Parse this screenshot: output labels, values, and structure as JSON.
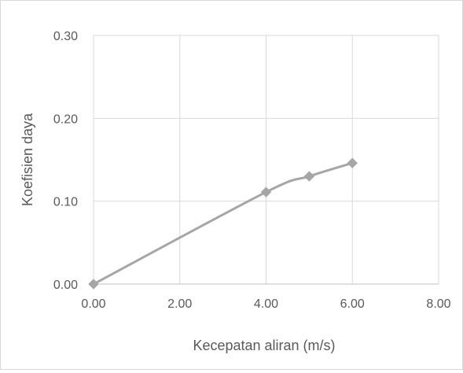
{
  "chart_data": {
    "type": "scatter",
    "title": "",
    "xlabel": "Kecepatan aliran (m/s)",
    "ylabel": "Koefisien daya",
    "xlim": [
      0,
      8
    ],
    "ylim": [
      0,
      0.3
    ],
    "x_ticks": [
      "0.00",
      "2.00",
      "4.00",
      "6.00",
      "8.00"
    ],
    "y_ticks": [
      "0.00",
      "0.10",
      "0.20",
      "0.30"
    ],
    "grid": true,
    "legend": "none",
    "series": [
      {
        "x": [
          0,
          4,
          5,
          6
        ],
        "y": [
          0,
          0.111,
          0.13,
          0.146
        ],
        "marker": "diamond",
        "line": "smooth",
        "color": "#a6a6a6"
      }
    ]
  }
}
